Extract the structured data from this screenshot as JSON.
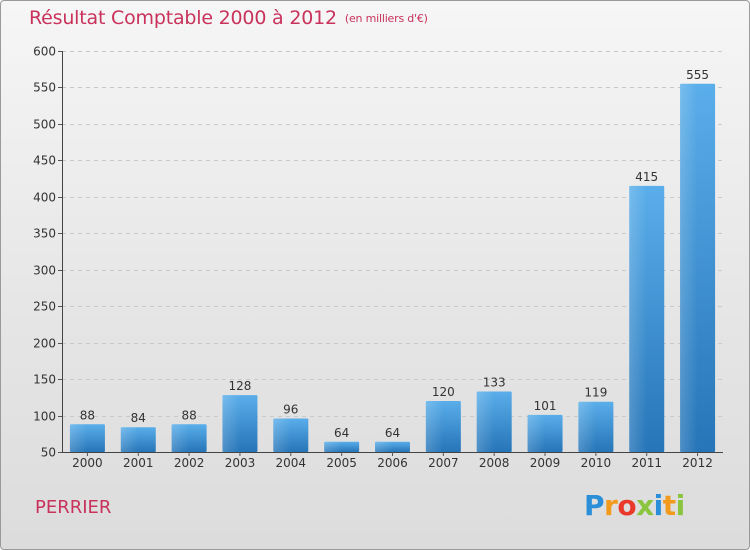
{
  "chart_data": {
    "type": "bar",
    "title": "Résultat Comptable 2000 à 2012",
    "subtitle": "(en milliers d'€)",
    "categories": [
      "2000",
      "2001",
      "2002",
      "2003",
      "2004",
      "2005",
      "2006",
      "2007",
      "2008",
      "2009",
      "2010",
      "2011",
      "2012"
    ],
    "values": [
      88,
      84,
      88,
      128,
      96,
      64,
      64,
      120,
      133,
      101,
      119,
      415,
      555
    ],
    "ylim": [
      50,
      600
    ],
    "yticks": [
      50,
      100,
      150,
      200,
      250,
      300,
      350,
      400,
      450,
      500,
      550,
      600
    ],
    "xlabel": "",
    "ylabel": "",
    "bar_color": "#3a8fd6"
  },
  "place_label": "PERRIER",
  "logo": {
    "text": "Proxiti",
    "letters": [
      {
        "ch": "P",
        "color": "#2a8fd8"
      },
      {
        "ch": "r",
        "color": "#f29a1c"
      },
      {
        "ch": "o",
        "color": "#e8392a"
      },
      {
        "ch": "x",
        "color": "#8bc43f"
      },
      {
        "ch": "i",
        "color": "#2a8fd8"
      },
      {
        "ch": "t",
        "color": "#f29a1c"
      },
      {
        "ch": "i",
        "color": "#8bc43f"
      }
    ]
  }
}
